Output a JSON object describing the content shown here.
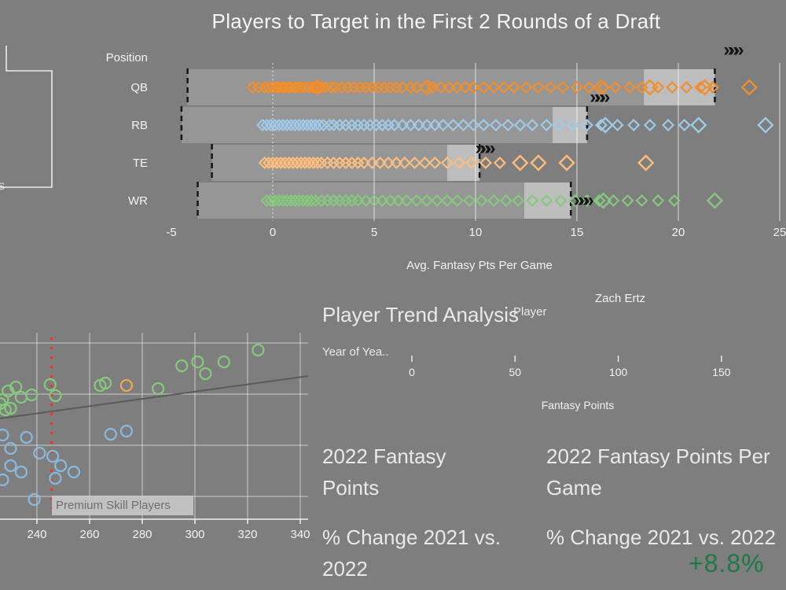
{
  "page": {
    "background": "#7e7e7e"
  },
  "header": {
    "title": "Players to Target in the First 2 Rounds of a Draft"
  },
  "trend_panel": {
    "title": "Player Trend Analysis",
    "player_label": "Player",
    "player_value": "Zach Ertz",
    "year_label": "Year of Yea..",
    "axis_title": "Fantasy Points",
    "x_ticks": [
      0,
      50,
      100,
      150
    ]
  },
  "kpi_section": {
    "fantasy_points_title": "2022 Fantasy Points",
    "fantasy_ppg_title": "2022 Fantasy Points Per Game",
    "pct_change_left_title": "% Change 2021 vs. 2022",
    "pct_change_right_title": "% Change 2021 vs. 2022",
    "pct_change_value": "+8.8%",
    "pct_change_value_color": "#1e7a45"
  },
  "cropped_fragment": {
    "text": "S"
  },
  "chart_data": [
    {
      "type": "scatter",
      "variant": "strip-plot",
      "title": "Players to Target in the First 2 Rounds of a Draft",
      "xlabel": "Avg. Fantasy Pts Per Game",
      "ylabel": "Position",
      "xlim": [
        -5,
        25
      ],
      "x_ticks": [
        "-5",
        "0",
        "5",
        "10",
        "15",
        "20",
        "25"
      ],
      "x_tick_values": [
        -5,
        0,
        5,
        10,
        15,
        20,
        25
      ],
      "style": {
        "band": "#969696",
        "band_highlight": "#bdbdbd",
        "ref_line": "#161616",
        "grid": "rgba(255,255,255,0.72)",
        "marker_glyph_color": "#141414",
        "axis_text": "#f2f2f2"
      },
      "rows": [
        {
          "label": "QB",
          "color": "#f28e2b",
          "ref_low": -4.2,
          "ref_high": 21.8,
          "band_split": 18.3,
          "marker": "»»»",
          "marker_value": 22.6,
          "points": [
            -1.0,
            -0.7,
            -0.4,
            -0.2,
            0.0,
            0.2,
            0.3,
            0.5,
            0.6,
            0.8,
            0.9,
            1.1,
            1.2,
            1.4,
            1.6,
            1.8,
            2.0,
            2.2,
            2.4,
            2.6,
            2.9,
            3.1,
            3.4,
            3.7,
            4.0,
            4.3,
            4.6,
            4.9,
            5.2,
            5.5,
            5.8,
            6.1,
            6.4,
            6.8,
            7.1,
            7.5,
            7.9,
            8.3,
            8.7,
            9.1,
            9.5,
            9.9,
            10.4,
            10.9,
            11.4,
            11.9,
            12.5,
            13.1,
            13.7,
            14.3,
            15.0,
            15.6,
            16.3,
            16.9,
            17.6,
            18.2,
            19.0,
            19.7,
            20.4,
            21.1,
            21.7
          ],
          "big_points": [
            2.2,
            7.6,
            16.2,
            18.6,
            21.3,
            23.5
          ]
        },
        {
          "label": "RB",
          "color": "#a0cbe8",
          "ref_low": -4.5,
          "ref_high": 15.5,
          "band_split": 13.8,
          "marker": "»»»",
          "marker_value": 16.0,
          "points": [
            -0.5,
            -0.3,
            -0.1,
            0.1,
            0.3,
            0.5,
            0.7,
            0.9,
            1.1,
            1.3,
            1.5,
            1.7,
            1.9,
            2.1,
            2.3,
            2.5,
            2.8,
            3.0,
            3.3,
            3.6,
            3.9,
            4.2,
            4.5,
            4.8,
            5.1,
            5.4,
            5.7,
            6.0,
            6.4,
            6.8,
            7.2,
            7.6,
            8.0,
            8.4,
            8.9,
            9.4,
            9.9,
            10.4,
            11.0,
            11.6,
            12.2,
            12.8,
            13.5,
            14.1,
            14.8,
            15.5,
            16.2,
            17.0,
            17.8,
            18.6,
            19.5,
            20.3
          ],
          "big_points": [
            16.4,
            21.0,
            24.3
          ]
        },
        {
          "label": "TE",
          "color": "#ffbe7d",
          "ref_low": -3.0,
          "ref_high": 10.2,
          "band_split": 8.6,
          "marker": "»»»",
          "marker_value": 10.35,
          "points": [
            -0.4,
            -0.2,
            0.0,
            0.2,
            0.4,
            0.6,
            0.8,
            1.0,
            1.2,
            1.4,
            1.6,
            1.8,
            2.0,
            2.2,
            2.4,
            2.7,
            3.0,
            3.3,
            3.6,
            3.9,
            4.2,
            4.5,
            4.9,
            5.3,
            5.7,
            6.1,
            6.5,
            7.0,
            7.5,
            8.0,
            8.6,
            9.2,
            9.8,
            10.5,
            11.2
          ],
          "big_points": [
            12.2,
            13.1,
            14.5,
            18.4
          ]
        },
        {
          "label": "WR",
          "color": "#85c97c",
          "ref_low": -3.7,
          "ref_high": 14.7,
          "band_split": 12.4,
          "marker": "»»»",
          "marker_value": 15.2,
          "points": [
            -0.3,
            -0.1,
            0.1,
            0.3,
            0.5,
            0.7,
            0.9,
            1.1,
            1.3,
            1.5,
            1.7,
            1.9,
            2.1,
            2.4,
            2.7,
            3.0,
            3.3,
            3.6,
            3.9,
            4.2,
            4.6,
            5.0,
            5.4,
            5.8,
            6.2,
            6.6,
            7.1,
            7.6,
            8.1,
            8.6,
            9.1,
            9.7,
            10.3,
            10.9,
            11.5,
            12.1,
            12.8,
            13.5,
            14.2,
            14.9,
            15.5,
            16.1,
            16.8,
            17.5,
            18.2,
            19.0,
            19.8
          ],
          "big_points": [
            16.3,
            21.8
          ]
        }
      ]
    },
    {
      "type": "scatter",
      "variant": "cropped-left-bottom",
      "y_unit": "screen-px (y-axis cropped out of frame)",
      "x_ticks": [
        240,
        260,
        280,
        300,
        320,
        340
      ],
      "xlim": [
        226,
        345
      ],
      "annotation": "Premium Skill Players",
      "ref_line": {
        "x": 245.5,
        "color": "#e03a34"
      },
      "trend_line": {
        "x1": 226,
        "y1": 117,
        "x2": 343,
        "y2": 63,
        "color": "#5b5b5b"
      },
      "series": [
        {
          "name": "green",
          "color": "#85c97c",
          "points": [
            [
              226,
              98
            ],
            [
              227,
              93
            ],
            [
              228,
              106
            ],
            [
              230,
              104
            ],
            [
              229,
              82
            ],
            [
              232,
              77
            ],
            [
              234,
              90
            ],
            [
              238,
              87
            ],
            [
              245,
              74
            ],
            [
              247,
              88
            ],
            [
              264,
              75
            ],
            [
              266,
              72
            ],
            [
              286,
              79
            ],
            [
              295,
              50
            ],
            [
              301,
              45
            ],
            [
              304,
              60
            ],
            [
              311,
              45
            ],
            [
              324,
              30
            ]
          ]
        },
        {
          "name": "orange",
          "color": "#f0a458",
          "points": [
            [
              274,
              75
            ]
          ]
        },
        {
          "name": "blue",
          "color": "#8ab9de",
          "points": [
            [
              227,
              138
            ],
            [
              230,
              155
            ],
            [
              236,
              141
            ],
            [
              241,
              161
            ],
            [
              234,
              185
            ],
            [
              230,
              177
            ],
            [
              227,
              195
            ],
            [
              246,
              165
            ],
            [
              249,
              177
            ],
            [
              254,
              185
            ],
            [
              268,
              137
            ],
            [
              274,
              133
            ],
            [
              239,
              220
            ],
            [
              247,
              193
            ]
          ]
        }
      ]
    }
  ]
}
